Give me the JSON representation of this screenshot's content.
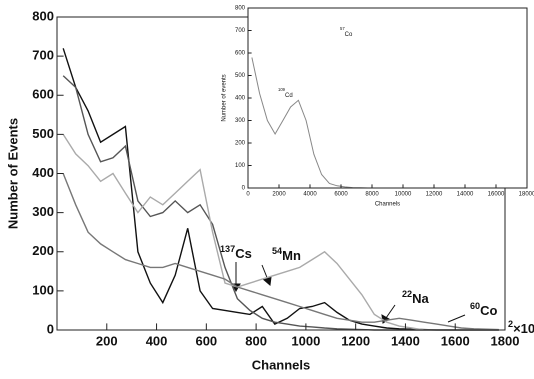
{
  "chart_data": [
    {
      "type": "line",
      "xlabel": "Channels",
      "ylabel": "Number of Events",
      "x_multiplier": {
        "text": "×10",
        "superscript": "2"
      },
      "annotations": [
        {
          "superscript": "137",
          "text": "Cs"
        },
        {
          "superscript": "54",
          "text": "Mn"
        },
        {
          "superscript": "22",
          "text": "Na"
        },
        {
          "superscript": "60",
          "text": "Co"
        }
      ],
      "x": [
        25,
        75,
        125,
        175,
        225,
        275,
        325,
        375,
        425,
        475,
        525,
        575,
        625,
        675,
        725,
        775,
        825,
        875,
        925,
        975,
        1025,
        1075,
        1125,
        1175,
        1225,
        1275,
        1325,
        1375,
        1425,
        1475,
        1525,
        1575,
        1625,
        1675,
        1725,
        1775
      ],
      "series": [
        {
          "color": "#111111",
          "values": [
            720,
            620,
            560,
            480,
            500,
            520,
            200,
            120,
            70,
            140,
            260,
            100,
            55,
            50,
            45,
            40,
            60,
            15,
            30,
            55,
            60,
            70,
            45,
            25,
            15,
            10,
            5,
            3,
            2,
            1,
            0,
            0,
            0,
            0,
            0,
            0
          ]
        },
        {
          "color": "#555555",
          "values": [
            650,
            620,
            500,
            430,
            440,
            470,
            330,
            290,
            300,
            330,
            300,
            320,
            270,
            160,
            80,
            50,
            30,
            20,
            15,
            10,
            8,
            5,
            3,
            2,
            1,
            0,
            0,
            0,
            0,
            0,
            0,
            0,
            0,
            0,
            0,
            0
          ]
        },
        {
          "color": "#aaaaaa",
          "values": [
            500,
            450,
            420,
            380,
            400,
            350,
            300,
            340,
            320,
            350,
            380,
            410,
            250,
            120,
            110,
            120,
            130,
            140,
            150,
            160,
            180,
            200,
            170,
            130,
            90,
            40,
            20,
            10,
            5,
            0,
            0,
            0,
            0,
            0,
            0,
            0
          ]
        },
        {
          "color": "#777777",
          "values": [
            400,
            320,
            250,
            220,
            200,
            180,
            170,
            160,
            160,
            170,
            160,
            150,
            140,
            130,
            110,
            100,
            90,
            80,
            70,
            60,
            50,
            40,
            30,
            25,
            20,
            20,
            25,
            30,
            25,
            20,
            15,
            10,
            5,
            3,
            2,
            1
          ]
        }
      ],
      "xlim": [
        0,
        1800
      ],
      "xticks": [
        200,
        400,
        600,
        800,
        1000,
        1200,
        1400,
        1600,
        1800
      ],
      "ylim": [
        0,
        800
      ],
      "yticks": [
        0,
        100,
        200,
        300,
        400,
        500,
        600,
        700,
        800
      ]
    },
    {
      "type": "line",
      "xlabel": "Channels",
      "ylabel": "Number of events",
      "annotations": [
        {
          "superscript": "57",
          "text": "Co"
        },
        {
          "superscript": "109",
          "text": "Cd"
        }
      ],
      "x": [
        250,
        750,
        1250,
        1750,
        2250,
        2750,
        3250,
        3750,
        4250,
        4750,
        5250,
        5750,
        6250,
        6750,
        7250,
        7750,
        8250,
        8750,
        9250,
        9750,
        10250,
        10750,
        11250,
        11750,
        12250,
        12750,
        13250,
        13750,
        14250,
        14750,
        15250,
        15750,
        16250,
        16750,
        17250,
        17750
      ],
      "series": [
        {
          "color": "#888888",
          "values": [
            580,
            420,
            300,
            240,
            300,
            360,
            390,
            300,
            150,
            60,
            20,
            10,
            5,
            2,
            1,
            0,
            0,
            0,
            0,
            0,
            0,
            0,
            0,
            0,
            0,
            0,
            0,
            0,
            0,
            0,
            0,
            0,
            0,
            0,
            0,
            0
          ]
        }
      ],
      "xlim": [
        0,
        18000
      ],
      "xticks": [
        0,
        2000,
        4000,
        6000,
        8000,
        10000,
        12000,
        14000,
        16000,
        18000
      ],
      "ylim": [
        0,
        800
      ],
      "yticks": [
        0,
        100,
        200,
        300,
        400,
        500,
        600,
        700,
        800
      ]
    }
  ]
}
